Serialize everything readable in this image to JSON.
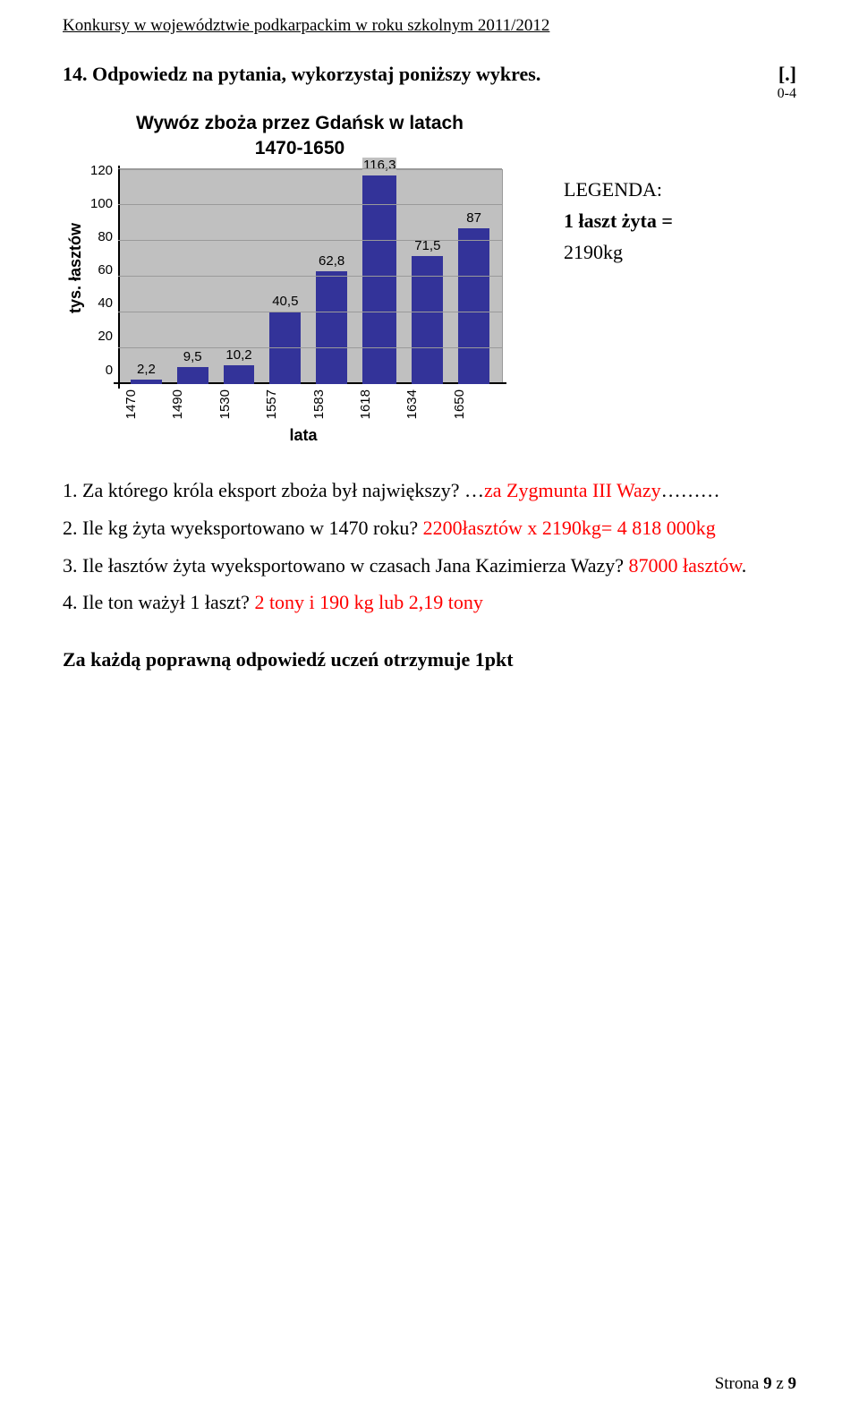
{
  "header": "Konkursy w województwie podkarpackim w roku szkolnym 2011/2012",
  "question": {
    "number_text": "14. Odpowiedz na pytania, wykorzystaj poniższy wykres.",
    "bracket": "[.]",
    "score_range": "0-4"
  },
  "chart": {
    "type": "bar",
    "title_line1": "Wywóz zboża przez Gdańsk w latach",
    "title_line2": "1470-1650",
    "y_label": "tys. łasztów",
    "x_label": "lata",
    "ylim": [
      0,
      120
    ],
    "ytick_step": 20,
    "yticks": [
      "120",
      "100",
      "80",
      "60",
      "40",
      "20",
      "0"
    ],
    "categories": [
      "1470",
      "1490",
      "1530",
      "1557",
      "1583",
      "1618",
      "1634",
      "1650"
    ],
    "values": [
      2.2,
      9.5,
      10.2,
      40.5,
      62.8,
      116.3,
      71.5,
      87
    ],
    "value_labels": [
      "2,2",
      "9,5",
      "10,2",
      "40,5",
      "62,8",
      "116,3",
      "71,5",
      "87"
    ],
    "bar_color": "#333399",
    "plot_bg": "#c0c0c0",
    "grid_color": "#9a9a9a"
  },
  "legend": {
    "title": "LEGENDA:",
    "line1_bold": "1 łaszt żyta =",
    "line2": "2190kg"
  },
  "sub_questions": {
    "q1_prefix": "1. Za którego króla eksport zboża był największy? …",
    "q1_answer": "za Zygmunta III Wazy",
    "q1_suffix": "………",
    "q2_prefix": "2. Ile kg żyta wyeksportowano w 1470 roku? ",
    "q2_answer": "2200łasztów x 2190kg= 4 818 000kg",
    "q3_prefix": "3. Ile łasztów żyta wyeksportowano w czasach Jana Kazimierza Wazy? ",
    "q3_answer": "87000 łasztów",
    "q3_suffix": ".",
    "q4_prefix": "4. Ile ton ważył 1 łaszt? ",
    "q4_answer": "2 tony i 190 kg lub 2,19 tony"
  },
  "credit": "Za każdą poprawną odpowiedź uczeń otrzymuje 1pkt",
  "footer": {
    "label": "Strona ",
    "page": "9",
    "of_label": " z ",
    "total": "9"
  }
}
